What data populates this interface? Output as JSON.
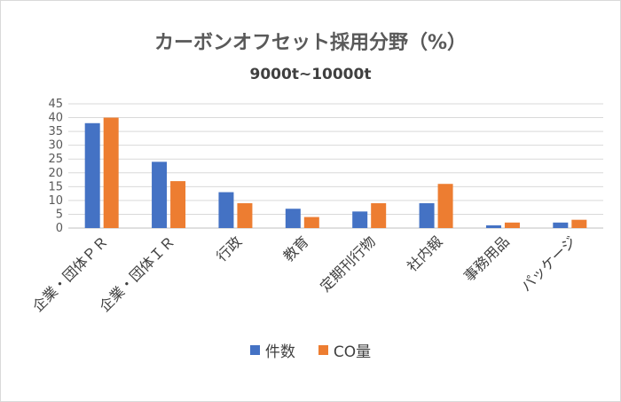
{
  "chart_data": {
    "type": "bar",
    "title": "カーボンオフセット採用分野（%）",
    "subtitle": "9000t~10000t",
    "categories": [
      "企業・団体ＰＲ",
      "企業・団体ＩＲ",
      "行政",
      "教育",
      "定期刊行物",
      "社内報",
      "事務用品",
      "パッケージ"
    ],
    "series": [
      {
        "name": "件数",
        "color": "#4472c4",
        "values": [
          38,
          24,
          13,
          7,
          6,
          9,
          1,
          2
        ]
      },
      {
        "name": "CO量",
        "color": "#ed7d31",
        "values": [
          40,
          17,
          9,
          4,
          9,
          16,
          2,
          3
        ]
      }
    ],
    "ylim": [
      0,
      45
    ],
    "yticks": [
      0,
      5,
      10,
      15,
      20,
      25,
      30,
      35,
      40,
      45
    ],
    "grid": true,
    "legend_position": "bottom"
  }
}
